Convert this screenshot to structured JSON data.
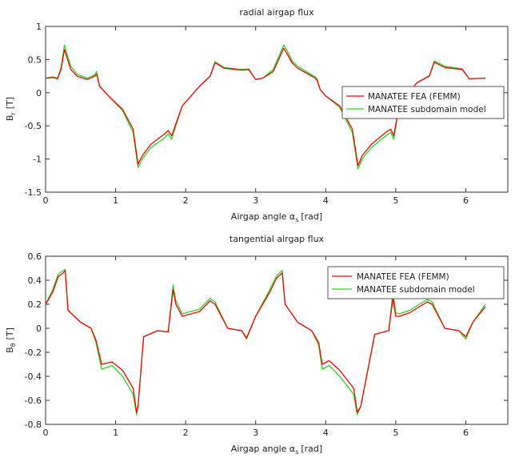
{
  "chart_data": [
    {
      "type": "line",
      "title": "radial airgap flux",
      "xlabel": "Airgap angle α_s [rad]",
      "xlabel_main": "Airgap angle α",
      "xlabel_sub": "s",
      "xlabel_unit": "[rad]",
      "ylabel_main": "B",
      "ylabel_sub": "r",
      "ylabel_unit": "[T]",
      "xlim": [
        0,
        6.6
      ],
      "ylim": [
        -1.5,
        1
      ],
      "xticks": [
        "0",
        "1",
        "2",
        "3",
        "4",
        "5",
        "6"
      ],
      "yticks": [
        "1",
        "0.5",
        "0",
        "-0.5",
        "-1",
        "-1.5"
      ],
      "legend": {
        "location": "right-center",
        "entries": [
          "MANATEE FEA (FEMM)",
          "MANATEE subdomain model"
        ]
      },
      "series": [
        {
          "name": "MANATEE FEA (FEMM)",
          "color": "#ff0000",
          "x": [
            0,
            0.1,
            0.17,
            0.22,
            0.27,
            0.3,
            0.36,
            0.45,
            0.6,
            0.7,
            0.73,
            0.77,
            0.9,
            1.1,
            1.25,
            1.32,
            1.38,
            1.5,
            1.7,
            1.75,
            1.8,
            1.95,
            2.2,
            2.35,
            2.42,
            2.55,
            2.8,
            2.9,
            3.0,
            3.1,
            3.25,
            3.4,
            3.44,
            3.52,
            3.6,
            3.75,
            3.85,
            3.88,
            3.92,
            4.0,
            4.2,
            4.38,
            4.46,
            4.52,
            4.65,
            4.88,
            4.93,
            4.97,
            5.05,
            5.3,
            5.48,
            5.55,
            5.7,
            5.95,
            6.05,
            6.28
          ],
          "y": [
            0.22,
            0.23,
            0.21,
            0.35,
            0.65,
            0.55,
            0.35,
            0.25,
            0.2,
            0.25,
            0.28,
            0.1,
            -0.05,
            -0.25,
            -0.55,
            -1.08,
            -0.95,
            -0.78,
            -0.62,
            -0.57,
            -0.65,
            -0.2,
            0.1,
            0.25,
            0.45,
            0.37,
            0.34,
            0.35,
            0.2,
            0.22,
            0.32,
            0.67,
            0.6,
            0.45,
            0.37,
            0.28,
            0.22,
            0.18,
            0.05,
            -0.05,
            -0.2,
            -0.55,
            -1.1,
            -0.95,
            -0.78,
            -0.58,
            -0.55,
            -0.65,
            -0.2,
            0.15,
            0.25,
            0.46,
            0.38,
            0.35,
            0.21,
            0.22
          ]
        },
        {
          "name": "MANATEE subdomain model",
          "color": "#22dd22",
          "x": [
            0,
            0.1,
            0.17,
            0.22,
            0.27,
            0.3,
            0.36,
            0.45,
            0.6,
            0.7,
            0.73,
            0.77,
            0.9,
            1.1,
            1.25,
            1.32,
            1.38,
            1.5,
            1.7,
            1.75,
            1.8,
            1.95,
            2.2,
            2.35,
            2.42,
            2.55,
            2.8,
            2.9,
            3.0,
            3.1,
            3.25,
            3.4,
            3.44,
            3.52,
            3.6,
            3.75,
            3.85,
            3.88,
            3.92,
            4.0,
            4.2,
            4.38,
            4.46,
            4.52,
            4.65,
            4.88,
            4.93,
            4.97,
            5.05,
            5.3,
            5.48,
            5.55,
            5.7,
            5.95,
            6.05,
            6.28
          ],
          "y": [
            0.22,
            0.24,
            0.22,
            0.38,
            0.72,
            0.6,
            0.4,
            0.28,
            0.22,
            0.27,
            0.32,
            0.1,
            -0.05,
            -0.27,
            -0.6,
            -1.13,
            -1.0,
            -0.83,
            -0.68,
            -0.62,
            -0.7,
            -0.2,
            0.1,
            0.25,
            0.47,
            0.38,
            0.35,
            0.36,
            0.2,
            0.22,
            0.35,
            0.72,
            0.65,
            0.48,
            0.4,
            0.3,
            0.24,
            0.2,
            0.05,
            -0.05,
            -0.22,
            -0.6,
            -1.15,
            -1.0,
            -0.83,
            -0.63,
            -0.6,
            -0.7,
            -0.2,
            0.15,
            0.26,
            0.48,
            0.4,
            0.36,
            0.21,
            0.22
          ]
        }
      ]
    },
    {
      "type": "line",
      "title": "tangential airgap flux",
      "xlabel": "Airgap angle α_s [rad]",
      "xlabel_main": "Airgap angle α",
      "xlabel_sub": "s",
      "xlabel_unit": "[rad]",
      "ylabel_main": "B",
      "ylabel_sub": "θ",
      "ylabel_unit": "[T]",
      "xlim": [
        0,
        6.6
      ],
      "ylim": [
        -0.8,
        0.6
      ],
      "xticks": [
        "0",
        "1",
        "2",
        "3",
        "4",
        "5",
        "6"
      ],
      "yticks": [
        "0.6",
        "0.4",
        "0.2",
        "0",
        "-0.2",
        "-0.4",
        "-0.6",
        "-0.8"
      ],
      "legend": {
        "location": "top-right",
        "entries": [
          "MANATEE FEA (FEMM)",
          "MANATEE subdomain model"
        ]
      },
      "series": [
        {
          "name": "MANATEE FEA (FEMM)",
          "color": "#ff0000",
          "x": [
            0,
            0.1,
            0.18,
            0.25,
            0.28,
            0.32,
            0.5,
            0.65,
            0.72,
            0.8,
            0.95,
            1.1,
            1.25,
            1.3,
            1.32,
            1.4,
            1.6,
            1.75,
            1.82,
            1.86,
            1.95,
            2.2,
            2.35,
            2.42,
            2.6,
            2.8,
            2.87,
            3.0,
            3.2,
            3.3,
            3.38,
            3.42,
            3.6,
            3.8,
            3.9,
            3.95,
            4.05,
            4.2,
            4.4,
            4.45,
            4.5,
            4.7,
            4.9,
            4.96,
            5.0,
            5.05,
            5.2,
            5.45,
            5.52,
            5.7,
            5.9,
            6.0,
            6.1,
            6.28
          ],
          "y": [
            0.2,
            0.3,
            0.43,
            0.46,
            0.48,
            0.15,
            0.05,
            0.0,
            -0.1,
            -0.3,
            -0.28,
            -0.35,
            -0.5,
            -0.7,
            -0.65,
            -0.07,
            -0.02,
            -0.03,
            0.32,
            0.2,
            0.1,
            0.14,
            0.23,
            0.2,
            0.0,
            -0.02,
            -0.08,
            0.1,
            0.3,
            0.42,
            0.46,
            0.2,
            0.05,
            -0.02,
            -0.12,
            -0.3,
            -0.27,
            -0.35,
            -0.5,
            -0.7,
            -0.65,
            -0.05,
            -0.02,
            0.25,
            0.1,
            0.1,
            0.13,
            0.22,
            0.2,
            0.0,
            -0.02,
            -0.07,
            0.05,
            0.18
          ]
        },
        {
          "name": "MANATEE subdomain model",
          "color": "#22dd22",
          "x": [
            0,
            0.1,
            0.18,
            0.25,
            0.28,
            0.32,
            0.5,
            0.65,
            0.72,
            0.8,
            0.95,
            1.1,
            1.25,
            1.3,
            1.32,
            1.4,
            1.6,
            1.75,
            1.82,
            1.86,
            1.95,
            2.2,
            2.35,
            2.42,
            2.6,
            2.8,
            2.87,
            3.0,
            3.2,
            3.3,
            3.38,
            3.42,
            3.6,
            3.8,
            3.9,
            3.95,
            4.05,
            4.2,
            4.4,
            4.45,
            4.5,
            4.7,
            4.9,
            4.96,
            5.0,
            5.05,
            5.2,
            5.45,
            5.52,
            5.7,
            5.9,
            6.0,
            6.1,
            6.28
          ],
          "y": [
            0.2,
            0.32,
            0.45,
            0.48,
            0.49,
            0.15,
            0.05,
            0.0,
            -0.12,
            -0.34,
            -0.31,
            -0.4,
            -0.55,
            -0.72,
            -0.65,
            -0.07,
            -0.02,
            -0.03,
            0.36,
            0.23,
            0.12,
            0.16,
            0.25,
            0.22,
            0.0,
            -0.02,
            -0.09,
            0.1,
            0.32,
            0.44,
            0.48,
            0.2,
            0.05,
            -0.02,
            -0.14,
            -0.34,
            -0.31,
            -0.4,
            -0.55,
            -0.72,
            -0.65,
            -0.05,
            -0.02,
            0.3,
            0.13,
            0.12,
            0.15,
            0.24,
            0.22,
            0.0,
            -0.02,
            -0.09,
            0.05,
            0.2
          ]
        }
      ]
    }
  ]
}
